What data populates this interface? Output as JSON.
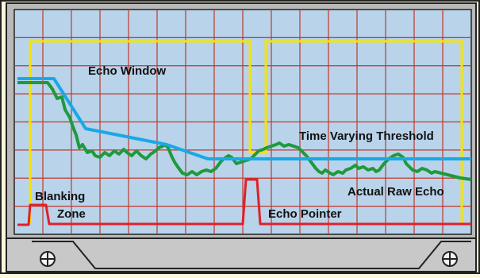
{
  "labels": {
    "echo_window": "Echo Window",
    "time_varying_threshold": "Time Varying Threshold",
    "actual_raw_echo": "Actual Raw Echo",
    "blanking_line1": "Blanking",
    "blanking_line2": "Zone",
    "echo_pointer": "Echo Pointer"
  },
  "colors": {
    "screen": "#b8d3ea",
    "grid": "#c0392b",
    "bezel": "#c8c8c8",
    "echo_window": "#f5e400",
    "threshold": "#1aa8e6",
    "raw_echo": "#1e9a3c",
    "pointer": "#e0202a",
    "text": "#111111"
  },
  "icons": {
    "left_knob": "crosshair-knob-icon",
    "right_knob": "crosshair-knob-icon"
  }
}
